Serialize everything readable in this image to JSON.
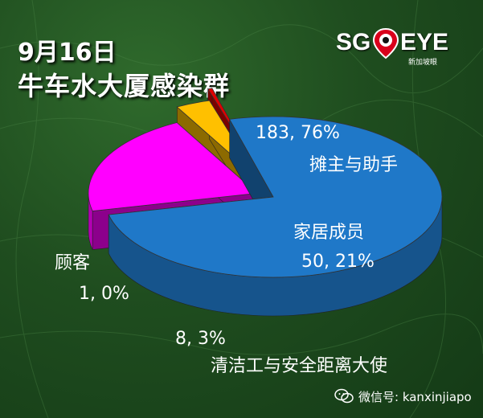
{
  "header": {
    "date": "9月16日",
    "cluster": "牛车水大厦感染群"
  },
  "logo": {
    "left_text": "SG",
    "right_text": "EYE",
    "subtext": "新加坡眼"
  },
  "watermark": {
    "text": "微信号: kanxinjiapo",
    "icon": "wechat-icon"
  },
  "colors": {
    "background": "#1f4d1f",
    "stall_owners": "#1f78c8",
    "family": "#ff00ff",
    "cleaners": "#ffc000",
    "customers": "#e00000",
    "text": "#ffffff"
  },
  "chart_data": {
    "type": "pie",
    "style": "3d-exploded",
    "slices": [
      {
        "name": "摊主与助手",
        "value": 183,
        "percent": "76%",
        "label": "183, 76%",
        "color": "#1f78c8"
      },
      {
        "name": "家居成员",
        "value": 50,
        "percent": "21%",
        "label": "50, 21%",
        "color": "#ff00ff"
      },
      {
        "name": "清洁工与安全距离大使",
        "value": 8,
        "percent": "3%",
        "label": "8, 3%",
        "color": "#ffc000"
      },
      {
        "name": "顾客",
        "value": 1,
        "percent": "0%",
        "label": "1, 0%",
        "color": "#e00000"
      }
    ]
  }
}
